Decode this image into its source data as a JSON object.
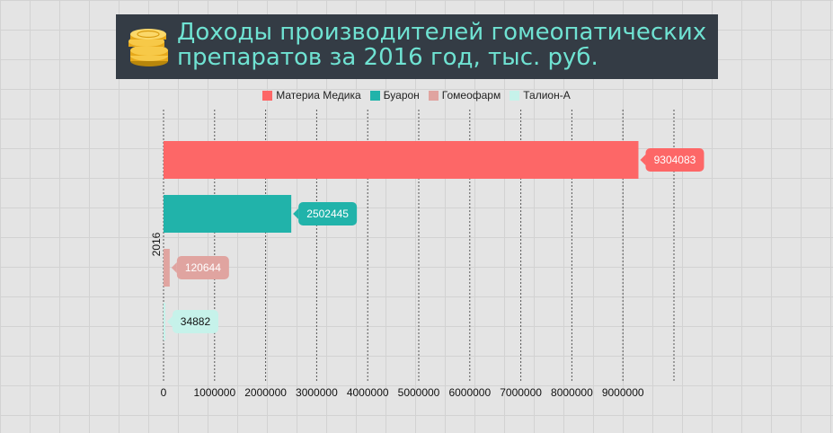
{
  "title": "Доходы производителей гомеопатических\nпрепаратов за 2016 год, тыс. руб.",
  "icon": "gold-coins-icon",
  "colors": {
    "title_bg": "#343c45",
    "title_text": "#6fe2d2"
  },
  "chart_data": {
    "type": "bar",
    "orientation": "horizontal",
    "categories": [
      "2016"
    ],
    "series": [
      {
        "name": "Материа Медика",
        "values": [
          9304083
        ],
        "color": "#fd6767",
        "label_color": "#ffffff"
      },
      {
        "name": "Буарон",
        "values": [
          2502445
        ],
        "color": "#21b3aa",
        "label_color": "#ffffff"
      },
      {
        "name": "Гомеофарм",
        "values": [
          120644
        ],
        "color": "#e0a4a0",
        "label_color": "#ffffff"
      },
      {
        "name": "Талион-А",
        "values": [
          34882
        ],
        "color": "#c6f2ea",
        "label_color": "#111111"
      }
    ],
    "xlim": [
      0,
      10000000
    ],
    "x_ticks": [
      0,
      1000000,
      2000000,
      3000000,
      4000000,
      5000000,
      6000000,
      7000000,
      8000000,
      9000000
    ],
    "x_tick_labels": [
      "0",
      "1000000",
      "2000000",
      "3000000",
      "4000000",
      "5000000",
      "6000000",
      "7000000",
      "8000000",
      "9000000"
    ],
    "legend": "top",
    "grid": "vertical dashed",
    "data_labels": true
  }
}
